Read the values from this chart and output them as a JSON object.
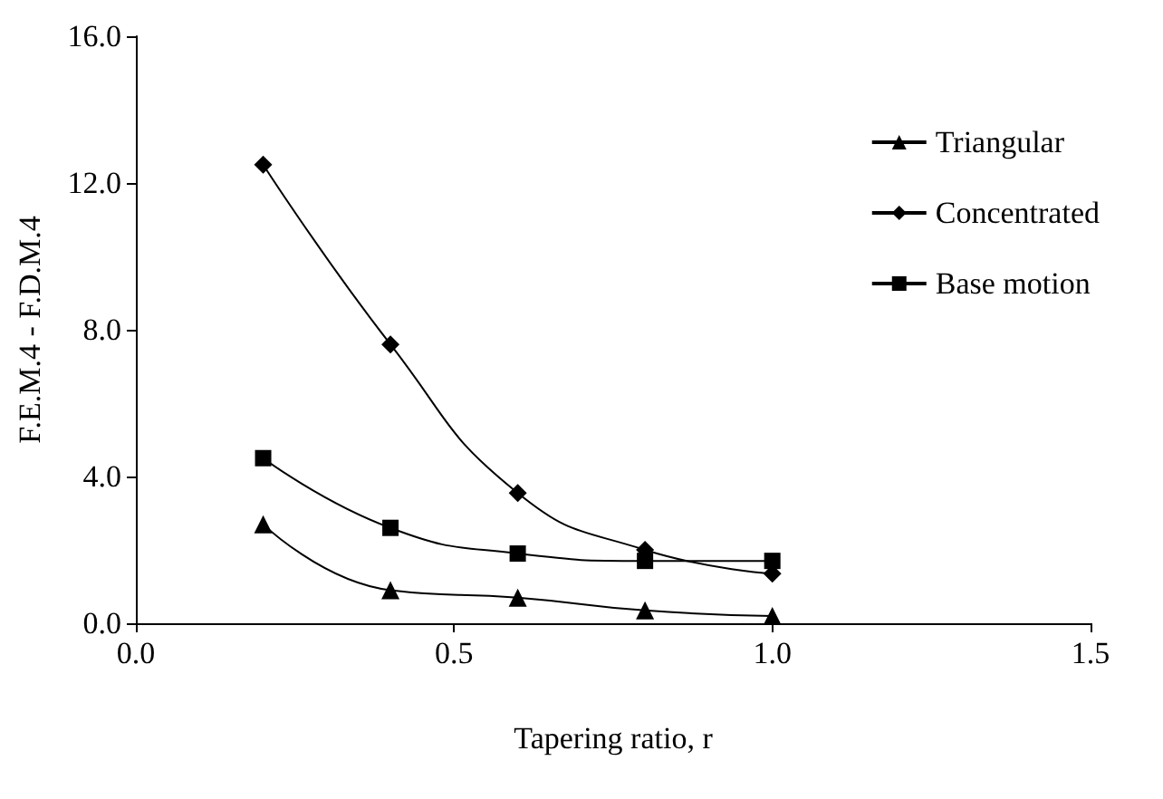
{
  "chart_data": {
    "type": "line",
    "xlabel": "Tapering ratio, r",
    "ylabel": "F.E.M.4 - F.D.M.4",
    "x": [
      0.2,
      0.4,
      0.6,
      0.8,
      1.0
    ],
    "series": [
      {
        "name": "Triangular",
        "color": "#000000",
        "marker": "triangle",
        "values": [
          2.7,
          0.9,
          0.7,
          0.35,
          0.2
        ]
      },
      {
        "name": "Concentrated",
        "color": "#000000",
        "marker": "diamond",
        "values": [
          12.5,
          7.6,
          3.55,
          2.0,
          1.35
        ]
      },
      {
        "name": "Base motion",
        "color": "#000000",
        "marker": "square",
        "values": [
          4.5,
          2.6,
          1.9,
          1.7,
          1.7
        ]
      }
    ],
    "xlim": [
      0,
      1.5
    ],
    "xticks": [
      {
        "value": 0,
        "label": "0.0"
      },
      {
        "value": 0.5,
        "label": "0.5"
      },
      {
        "value": 1,
        "label": "1.0"
      },
      {
        "value": 1.5,
        "label": "1.5"
      }
    ],
    "ylim": [
      0,
      16
    ],
    "yticks": [
      {
        "value": 0,
        "label": "0.0"
      },
      {
        "value": 4,
        "label": "4.0"
      },
      {
        "value": 8,
        "label": "8.0"
      },
      {
        "value": 12,
        "label": "12.0"
      },
      {
        "value": 16,
        "label": "16.0"
      }
    ],
    "grid": false,
    "legend": "top right",
    "line_style": "solid"
  }
}
